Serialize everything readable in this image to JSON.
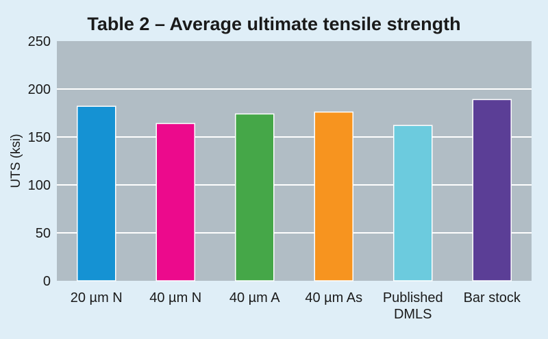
{
  "chart_data": {
    "type": "bar",
    "title": "Table 2 – Average ultimate tensile strength",
    "xlabel": "",
    "ylabel": "UTS (ksi)",
    "ylim": [
      0,
      250
    ],
    "yticks": [
      0,
      50,
      100,
      150,
      200,
      250
    ],
    "grid": true,
    "categories": [
      [
        "20 µm N"
      ],
      [
        "40 µm N"
      ],
      [
        "40 µm A"
      ],
      [
        "40 µm As"
      ],
      [
        "Published",
        "DMLS"
      ],
      [
        "Bar stock"
      ]
    ],
    "values": [
      182,
      164,
      174,
      176,
      162,
      189
    ],
    "colors": [
      "#1592d3",
      "#ec0a8c",
      "#45a748",
      "#f7941f",
      "#6ccbde",
      "#5b3e96"
    ]
  },
  "style": {
    "plot_background": "#b1bdc5",
    "page_background": "#dfeef7",
    "gridline_color": "#ffffff"
  }
}
